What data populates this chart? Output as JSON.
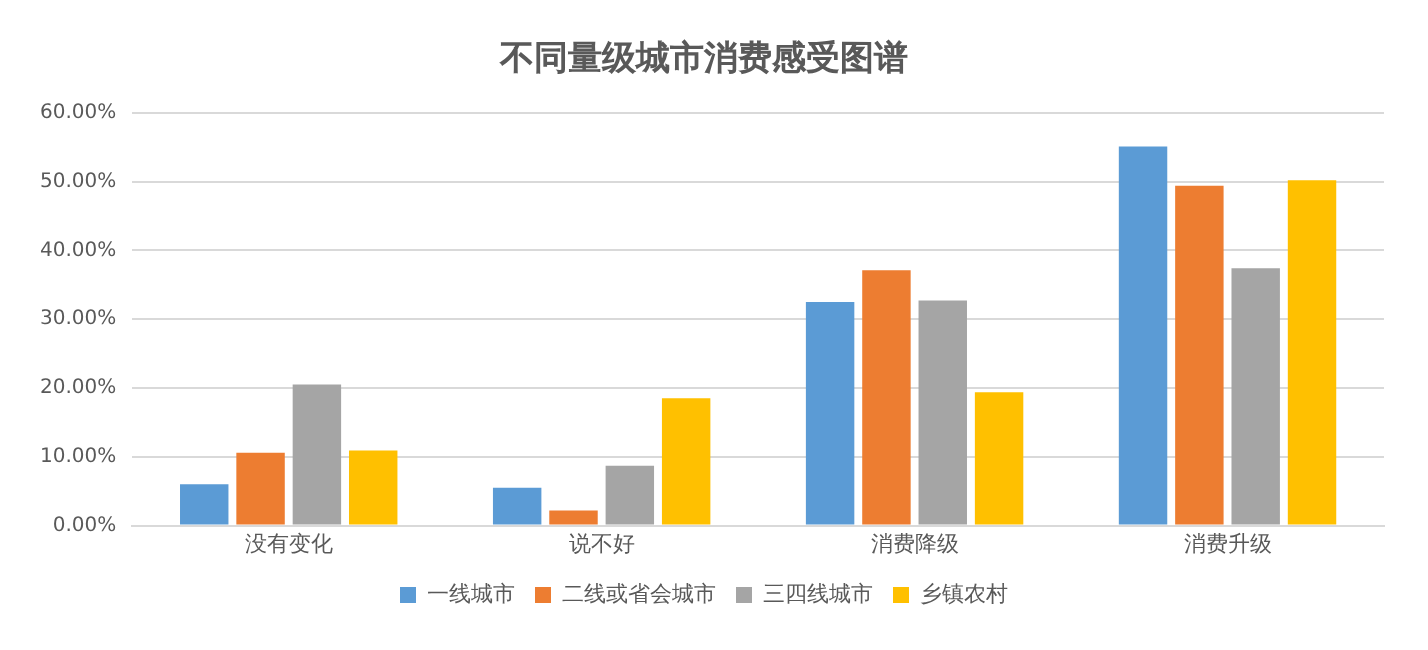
{
  "chart_data": {
    "type": "bar",
    "title": "不同量级城市消费感受图谱",
    "categories": [
      "没有变化",
      "说不好",
      "消费降级",
      "消费升级"
    ],
    "series": [
      {
        "name": "一线城市",
        "color": "#5b9bd5",
        "values": [
          6.0,
          5.5,
          32.5,
          55.1
        ]
      },
      {
        "name": "二线或省会城市",
        "color": "#ed7d31",
        "values": [
          10.6,
          2.2,
          37.1,
          49.4
        ]
      },
      {
        "name": "三四线城市",
        "color": "#a5a5a5",
        "values": [
          20.5,
          8.7,
          32.7,
          37.4
        ]
      },
      {
        "name": "乡镇农村",
        "color": "#ffc000",
        "values": [
          10.9,
          18.5,
          19.4,
          50.2
        ]
      }
    ],
    "ylim": [
      0,
      60
    ],
    "yticks": [
      {
        "value": 0,
        "label": "0.00%"
      },
      {
        "value": 10,
        "label": "10.00%"
      },
      {
        "value": 20,
        "label": "20.00%"
      },
      {
        "value": 30,
        "label": "30.00%"
      },
      {
        "value": 40,
        "label": "40.00%"
      },
      {
        "value": 50,
        "label": "50.00%"
      },
      {
        "value": 60,
        "label": "60.00%"
      }
    ],
    "grid": "y",
    "legend": "bottom"
  }
}
